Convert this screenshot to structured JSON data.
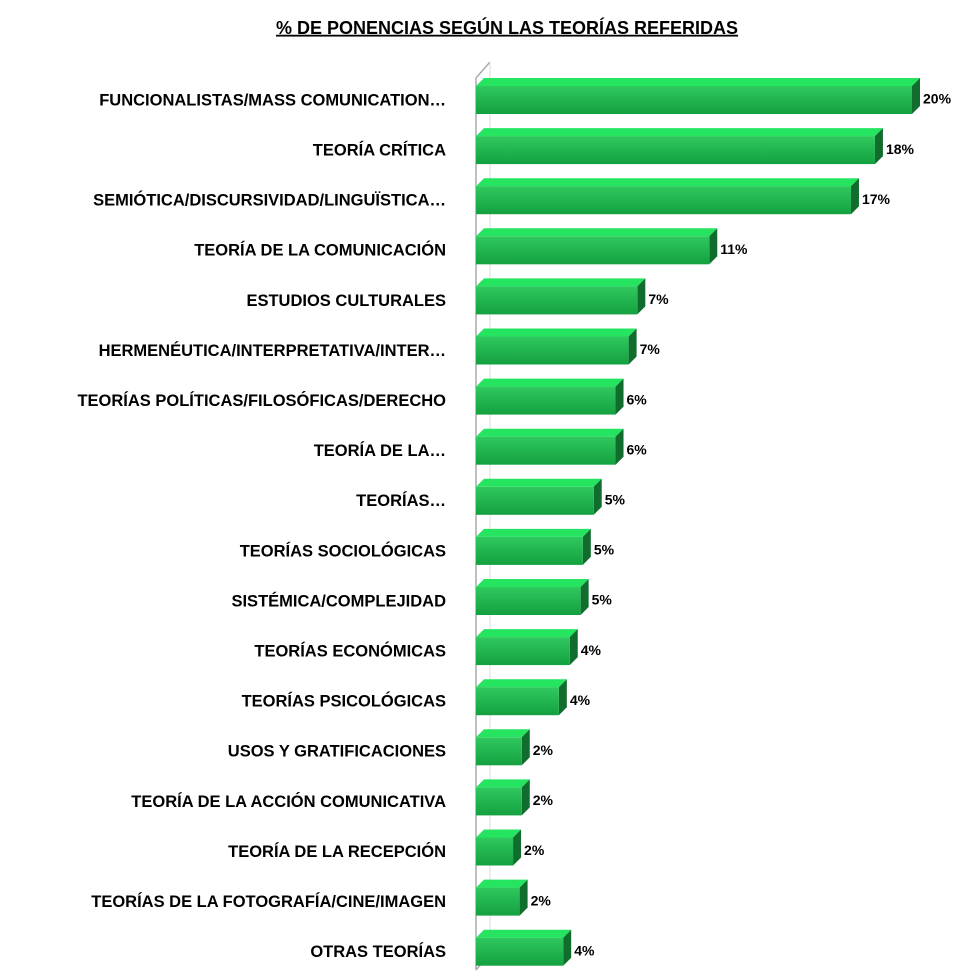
{
  "chart_data": {
    "type": "bar",
    "orientation": "horizontal",
    "title": "% DE PONENCIAS SEGÚN LAS TEORÍAS REFERIDAS",
    "categories": [
      "FUNCIONALISTAS/MASS COMUNICATION…",
      "TEORÍA CRÍTICA",
      "SEMIÓTICA/DISCURSIVIDAD/LINGUÏSTICA…",
      "TEORÍA DE LA COMUNICACIÓN",
      "ESTUDIOS CULTURALES",
      "HERMENÉUTICA/INTERPRETATIVA/INTER…",
      "TEORÍAS POLÍTICAS/FILOSÓFICAS/DERECHO",
      "TEORÍA DE LA…",
      "TEORÍAS…",
      "TEORÍAS SOCIOLÓGICAS",
      "SISTÉMICA/COMPLEJIDAD",
      "TEORÍAS ECONÓMICAS",
      "TEORÍAS PSICOLÓGICAS",
      "USOS Y GRATIFICACIONES",
      "TEORÍA DE LA ACCIÓN COMUNICATIVA",
      "TEORÍA DE LA RECEPCIÓN",
      "TEORÍAS DE LA FOTOGRAFÍA/CINE/IMAGEN",
      "OTRAS TEORÍAS"
    ],
    "values": [
      20,
      18.3,
      17.2,
      10.7,
      7.4,
      7.0,
      6.4,
      6.4,
      5.4,
      4.9,
      4.8,
      4.3,
      3.8,
      2.1,
      2.1,
      1.7,
      2.0,
      4.0
    ],
    "value_labels": [
      "20%",
      "18%",
      "17%",
      "11%",
      "7%",
      "7%",
      "6%",
      "6%",
      "5%",
      "5%",
      "5%",
      "4%",
      "4%",
      "2%",
      "2%",
      "2%",
      "2%",
      "4%"
    ],
    "color": "#1db64d",
    "xlim": [
      0,
      20
    ]
  }
}
